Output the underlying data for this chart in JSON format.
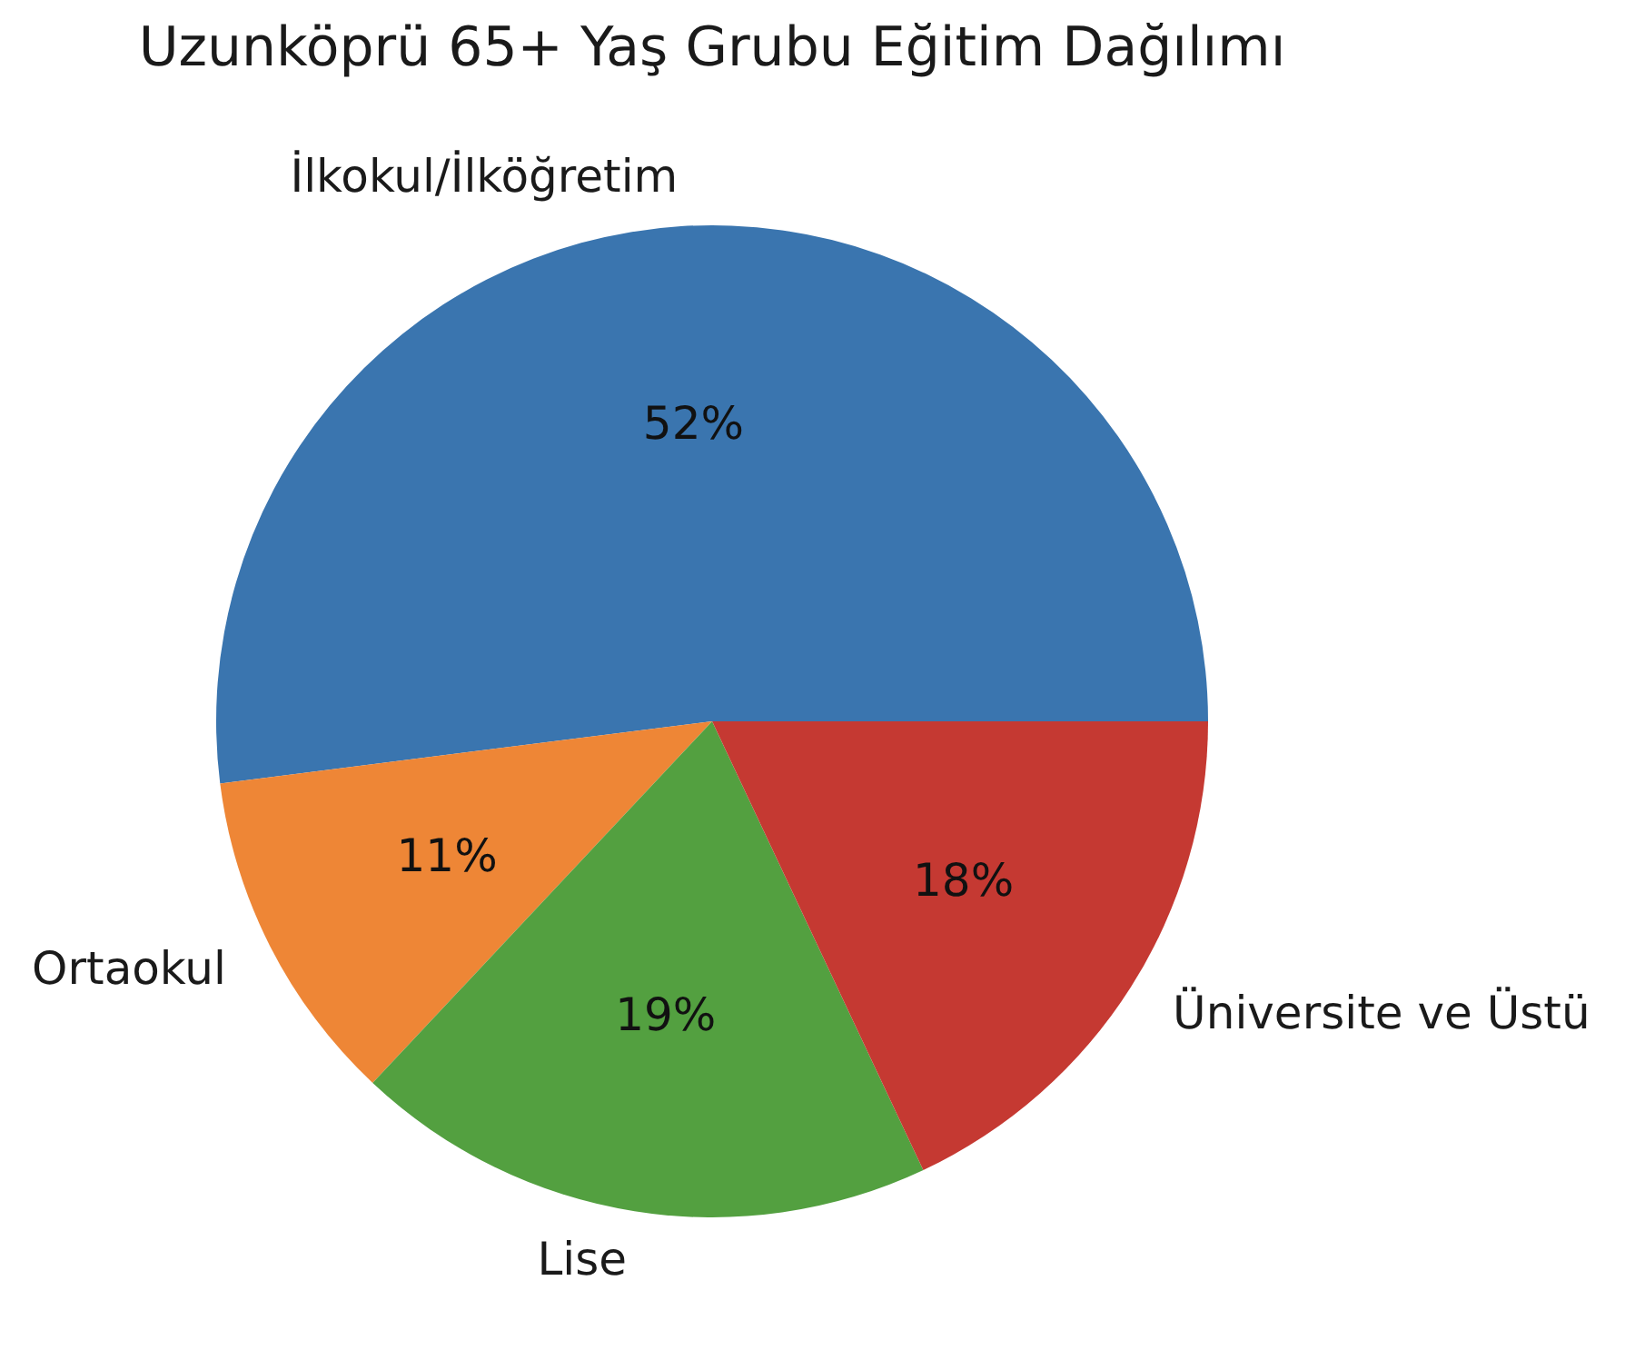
{
  "chart_data": {
    "type": "pie",
    "title": "Uzunköprü 65+ Yaş Grubu Eğitim Dağılımı",
    "categories": [
      "İlkokul/İlköğretim",
      "Ortaokul",
      "Lise",
      "Üniversite ve Üstü"
    ],
    "values": [
      52,
      11,
      19,
      18
    ],
    "colors": [
      "#3a75af",
      "#ee8636",
      "#53a040",
      "#c53932"
    ],
    "value_labels": [
      "52%",
      "11%",
      "19%",
      "18%"
    ]
  }
}
